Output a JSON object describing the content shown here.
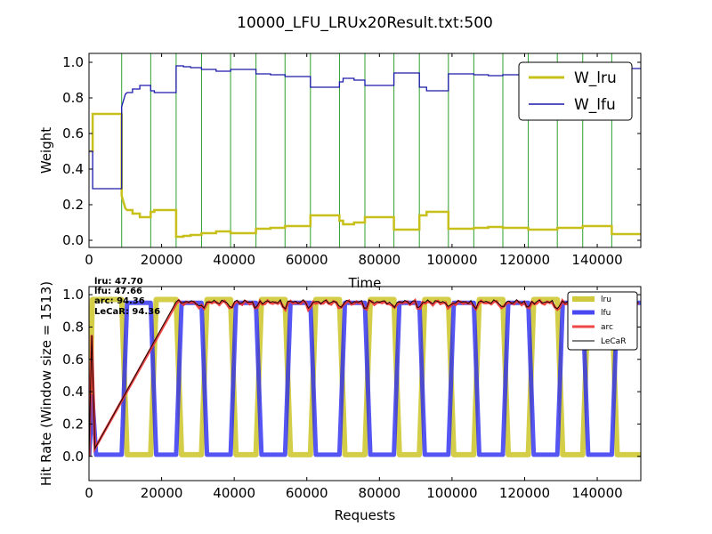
{
  "figure": {
    "title": "10000_LFU_LRUx20Result.txt:500"
  },
  "chart_data": [
    {
      "type": "line",
      "xlabel": "Time",
      "ylabel": "Weight",
      "xlim": [
        0,
        152000
      ],
      "ylim": [
        -0.04,
        1.05
      ],
      "xticks": [
        0,
        20000,
        40000,
        60000,
        80000,
        100000,
        120000,
        140000
      ],
      "xtick_labels": [
        "0",
        "20000",
        "40000",
        "60000",
        "80000",
        "100000",
        "120000",
        "140000"
      ],
      "yticks": [
        0.0,
        0.2,
        0.4,
        0.6,
        0.8,
        1.0
      ],
      "ytick_labels": [
        "0.0",
        "0.2",
        "0.4",
        "0.6",
        "0.8",
        "1.0"
      ],
      "vlines": [
        9000,
        17000,
        24000,
        31000,
        39000,
        46000,
        54000,
        61000,
        69000,
        76000,
        84000,
        91000,
        99000,
        106000,
        114000,
        121000,
        129000,
        136000,
        144000
      ],
      "vline_color": "#2ca02c",
      "legend": {
        "placement": "top-right"
      },
      "series": [
        {
          "name": "W_lru",
          "color": "#c8c01a",
          "x": [
            0,
            1000,
            1000,
            9000,
            9000,
            10000,
            10500,
            12000,
            12000,
            14000,
            14000,
            17000,
            17000,
            18000,
            18000,
            24000,
            24000,
            26000,
            26000,
            28000,
            28000,
            31000,
            31000,
            35000,
            35000,
            39000,
            39000,
            46000,
            46000,
            50000,
            50000,
            54000,
            54000,
            61000,
            61000,
            69000,
            69000,
            70000,
            70000,
            73000,
            73000,
            76000,
            76000,
            84000,
            84000,
            91000,
            91000,
            93000,
            93000,
            99000,
            99000,
            106000,
            106000,
            110000,
            110000,
            114000,
            114000,
            121000,
            121000,
            129000,
            129000,
            136000,
            136000,
            144000,
            144000,
            152000
          ],
          "y": [
            0.5,
            0.5,
            0.71,
            0.71,
            0.25,
            0.18,
            0.17,
            0.17,
            0.15,
            0.15,
            0.13,
            0.13,
            0.16,
            0.16,
            0.17,
            0.17,
            0.02,
            0.02,
            0.025,
            0.025,
            0.03,
            0.03,
            0.04,
            0.04,
            0.05,
            0.05,
            0.04,
            0.04,
            0.065,
            0.065,
            0.07,
            0.07,
            0.08,
            0.08,
            0.14,
            0.14,
            0.11,
            0.11,
            0.09,
            0.09,
            0.1,
            0.1,
            0.13,
            0.13,
            0.06,
            0.06,
            0.14,
            0.14,
            0.16,
            0.16,
            0.065,
            0.065,
            0.07,
            0.07,
            0.075,
            0.075,
            0.07,
            0.07,
            0.06,
            0.06,
            0.07,
            0.07,
            0.08,
            0.08,
            0.035,
            0.035
          ]
        },
        {
          "name": "W_lfu",
          "color": "#1a1aaa",
          "x": [
            0,
            1000,
            1000,
            9000,
            9000,
            10000,
            10500,
            12000,
            12000,
            14000,
            14000,
            17000,
            17000,
            18000,
            18000,
            24000,
            24000,
            26000,
            26000,
            28000,
            28000,
            31000,
            31000,
            35000,
            35000,
            39000,
            39000,
            46000,
            46000,
            50000,
            50000,
            54000,
            54000,
            61000,
            61000,
            69000,
            69000,
            70000,
            70000,
            73000,
            73000,
            76000,
            76000,
            84000,
            84000,
            91000,
            91000,
            93000,
            93000,
            99000,
            99000,
            106000,
            106000,
            110000,
            110000,
            114000,
            114000,
            121000,
            121000,
            129000,
            129000,
            136000,
            136000,
            144000,
            144000,
            152000
          ],
          "y": [
            0.5,
            0.5,
            0.29,
            0.29,
            0.75,
            0.82,
            0.83,
            0.83,
            0.85,
            0.85,
            0.87,
            0.87,
            0.84,
            0.84,
            0.83,
            0.83,
            0.98,
            0.98,
            0.975,
            0.975,
            0.97,
            0.97,
            0.96,
            0.96,
            0.95,
            0.95,
            0.96,
            0.96,
            0.935,
            0.935,
            0.93,
            0.93,
            0.92,
            0.92,
            0.86,
            0.86,
            0.89,
            0.89,
            0.91,
            0.91,
            0.9,
            0.9,
            0.87,
            0.87,
            0.94,
            0.94,
            0.86,
            0.86,
            0.84,
            0.84,
            0.935,
            0.935,
            0.93,
            0.93,
            0.925,
            0.925,
            0.93,
            0.93,
            0.94,
            0.94,
            0.93,
            0.93,
            0.92,
            0.92,
            0.965,
            0.965
          ]
        }
      ]
    },
    {
      "type": "line",
      "xlabel": "Requests",
      "ylabel": "Hit Rate (Window size = 1513)",
      "xlim": [
        0,
        152000
      ],
      "ylim": [
        -0.15,
        1.05
      ],
      "xticks": [
        0,
        20000,
        40000,
        60000,
        80000,
        100000,
        120000,
        140000
      ],
      "xtick_labels": [
        "0",
        "20000",
        "40000",
        "60000",
        "80000",
        "100000",
        "120000",
        "140000"
      ],
      "yticks": [
        0.0,
        0.2,
        0.4,
        0.6,
        0.8,
        1.0
      ],
      "ytick_labels": [
        "0.0",
        "0.2",
        "0.4",
        "0.6",
        "0.8",
        "1.0"
      ],
      "phase_boundaries": [
        9000,
        17000,
        24000,
        31000,
        39000,
        46000,
        54000,
        61000,
        69000,
        76000,
        84000,
        91000,
        99000,
        106000,
        114000,
        121000,
        129000,
        136000,
        144000
      ],
      "ramp_width": 1500,
      "annotation": [
        "lru:  47.70",
        "lfu:  47.66",
        "arc:  94.36",
        "LeCaR:  94.36"
      ],
      "legend": {
        "placement": "top-right"
      },
      "series": [
        {
          "name": "lru",
          "color": "#c8c01a",
          "high": 0.97,
          "low": 0.01,
          "first_phase": "high"
        },
        {
          "name": "lfu",
          "color": "#2a2af0",
          "high": 0.95,
          "low": 0.01,
          "first_phase": "low"
        },
        {
          "name": "arc",
          "color": "#ee3333",
          "level": 0.95
        },
        {
          "name": "LeCaR",
          "color": "#000000",
          "level": 0.955
        }
      ]
    }
  ]
}
